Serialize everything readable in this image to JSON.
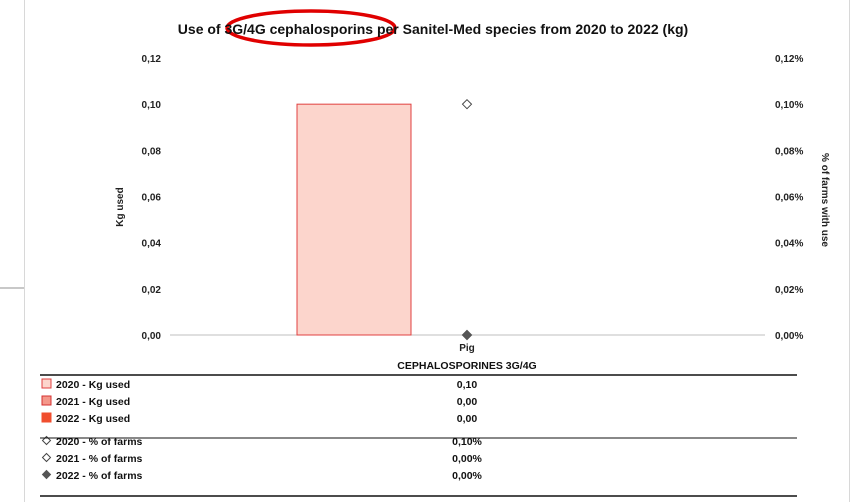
{
  "chart_data": {
    "type": "bar",
    "title": "Use of 3G/4G cephalosporins per Sanitel-Med species from 2020 to 2022 (kg)",
    "ylabel": "Kg used",
    "y2label": "% of farms with use",
    "ylim": [
      0,
      0.12
    ],
    "y2lim": [
      0,
      0.12
    ],
    "yticks": [
      "0,00",
      "0,02",
      "0,04",
      "0,06",
      "0,08",
      "0,10",
      "0,12"
    ],
    "y2ticks": [
      "0,00%",
      "0,02%",
      "0,04%",
      "0,06%",
      "0,08%",
      "0,10%",
      "0,12%"
    ],
    "categories": [
      "Pig"
    ],
    "table_header": "CEPHALOSPORINES 3G/4G",
    "series": [
      {
        "name": "2020 - Kg used",
        "kind": "bar",
        "axis": "left",
        "values": [
          0.1
        ],
        "display": [
          "0,10"
        ],
        "fill": "#fcd5cc",
        "stroke": "#e04040"
      },
      {
        "name": "2021 - Kg used",
        "kind": "bar",
        "axis": "left",
        "values": [
          0.0
        ],
        "display": [
          "0,00"
        ],
        "fill": "#f4978a",
        "stroke": "#d43030"
      },
      {
        "name": "2022 - Kg used",
        "kind": "bar",
        "axis": "left",
        "values": [
          0.0
        ],
        "display": [
          "0,00"
        ],
        "fill": "#f04e2e",
        "stroke": "#f04e2e"
      },
      {
        "name": "2020 - % of farms",
        "kind": "marker",
        "axis": "right",
        "values": [
          0.1
        ],
        "display": [
          "0,10%"
        ],
        "marker": "diamond-open",
        "color": "#444444"
      },
      {
        "name": "2021 - % of farms",
        "kind": "marker",
        "axis": "right",
        "values": [
          0.0
        ],
        "display": [
          "0,00%"
        ],
        "marker": "diamond-open",
        "color": "#444444"
      },
      {
        "name": "2022 - % of farms",
        "kind": "marker",
        "axis": "right",
        "values": [
          0.0
        ],
        "display": [
          "0,00%"
        ],
        "marker": "diamond-filled",
        "color": "#555555"
      }
    ],
    "annotation": {
      "type": "ellipse",
      "target": "3G/4G cephalosporins",
      "color": "#e00000"
    }
  }
}
